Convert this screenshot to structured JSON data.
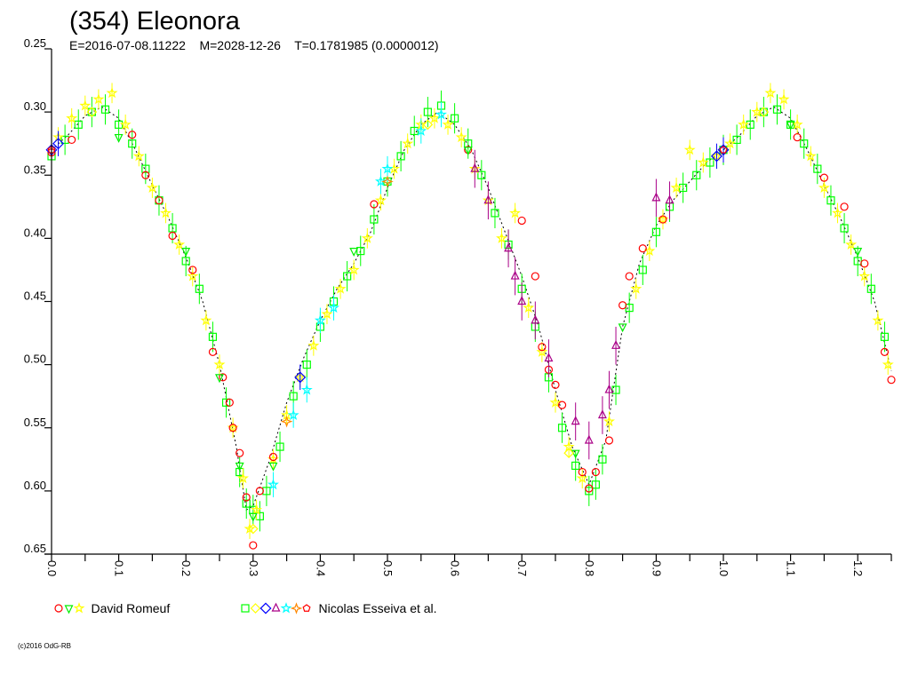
{
  "chart_data": {
    "type": "scatter",
    "title": "(354) Eleonora",
    "subtitle": "E=2016-07-08.11222    M=2028-12-26    T=0.1781985 (0.0000012)",
    "xlabel": "",
    "ylabel": "",
    "xlim": [
      0,
      1.25
    ],
    "ylim": [
      0.25,
      0.65
    ],
    "y_inverted": true,
    "grid": false,
    "x_ticks": [
      "0.0",
      "0.1",
      "0.2",
      "0.3",
      "0.4",
      "0.5",
      "0.6",
      "0.7",
      "0.8",
      "0.9",
      "1.0",
      "1.1",
      "1.2"
    ],
    "y_ticks": [
      "0.25",
      "0.30",
      "0.35",
      "0.40",
      "0.45",
      "0.50",
      "0.55",
      "0.60",
      "0.65"
    ],
    "legend_placement": "bottom",
    "legend": [
      {
        "label": "David Romeuf",
        "symbols": [
          [
            "circle",
            "#ff0000"
          ],
          [
            "triangle-down",
            "#00ee00"
          ],
          [
            "star",
            "#ffff00"
          ]
        ]
      },
      {
        "label": "Nicolas Esseiva et al.",
        "symbols": [
          [
            "square",
            "#00ff00"
          ],
          [
            "diamond",
            "#ffff00"
          ],
          [
            "xsquare",
            "#0000ff"
          ],
          [
            "triangle-up",
            "#aa0088"
          ],
          [
            "star",
            "#00ffff"
          ],
          [
            "diamond-star",
            "#ff8800"
          ],
          [
            "pentagon",
            "#ff0000"
          ]
        ]
      }
    ],
    "fit": {
      "x": [
        0,
        0.025,
        0.05,
        0.075,
        0.1,
        0.125,
        0.15,
        0.175,
        0.2,
        0.225,
        0.25,
        0.275,
        0.29,
        0.3,
        0.325,
        0.35,
        0.375,
        0.4,
        0.425,
        0.45,
        0.475,
        0.5,
        0.525,
        0.55,
        0.575,
        0.6,
        0.625,
        0.65,
        0.675,
        0.7,
        0.725,
        0.75,
        0.775,
        0.8,
        0.825,
        0.85,
        0.875,
        0.9,
        0.925,
        0.95,
        0.975,
        1.0,
        1.025,
        1.05,
        1.075,
        1.1,
        1.125,
        1.15,
        1.175,
        1.2,
        1.225,
        1.25
      ],
      "y": [
        0.33,
        0.318,
        0.303,
        0.296,
        0.305,
        0.33,
        0.358,
        0.385,
        0.415,
        0.45,
        0.5,
        0.565,
        0.615,
        0.612,
        0.575,
        0.53,
        0.495,
        0.465,
        0.44,
        0.42,
        0.395,
        0.36,
        0.33,
        0.31,
        0.3,
        0.31,
        0.33,
        0.36,
        0.395,
        0.43,
        0.47,
        0.52,
        0.565,
        0.595,
        0.56,
        0.47,
        0.42,
        0.39,
        0.37,
        0.355,
        0.34,
        0.33,
        0.318,
        0.303,
        0.296,
        0.305,
        0.33,
        0.358,
        0.385,
        0.415,
        0.45,
        0.505
      ]
    },
    "series": [
      {
        "name": "Nicolas Esseiva et al. (square)",
        "symbol": "square",
        "color": "#00ff00",
        "err": 0.012,
        "points": [
          [
            0,
            0.335
          ],
          [
            0.02,
            0.322
          ],
          [
            0.04,
            0.31
          ],
          [
            0.06,
            0.3
          ],
          [
            0.08,
            0.298
          ],
          [
            0.1,
            0.31
          ],
          [
            0.12,
            0.325
          ],
          [
            0.14,
            0.345
          ],
          [
            0.16,
            0.37
          ],
          [
            0.18,
            0.392
          ],
          [
            0.2,
            0.418
          ],
          [
            0.22,
            0.44
          ],
          [
            0.24,
            0.478
          ],
          [
            0.26,
            0.53
          ],
          [
            0.28,
            0.585
          ],
          [
            0.29,
            0.61
          ],
          [
            0.3,
            0.615
          ],
          [
            0.31,
            0.62
          ],
          [
            0.32,
            0.6
          ],
          [
            0.34,
            0.565
          ],
          [
            0.36,
            0.525
          ],
          [
            0.38,
            0.5
          ],
          [
            0.4,
            0.47
          ],
          [
            0.42,
            0.45
          ],
          [
            0.44,
            0.43
          ],
          [
            0.46,
            0.41
          ],
          [
            0.48,
            0.385
          ],
          [
            0.5,
            0.355
          ],
          [
            0.52,
            0.335
          ],
          [
            0.54,
            0.315
          ],
          [
            0.56,
            0.3
          ],
          [
            0.58,
            0.295
          ],
          [
            0.6,
            0.305
          ],
          [
            0.62,
            0.325
          ],
          [
            0.64,
            0.35
          ],
          [
            0.66,
            0.38
          ],
          [
            0.68,
            0.405
          ],
          [
            0.7,
            0.44
          ],
          [
            0.72,
            0.47
          ],
          [
            0.74,
            0.51
          ],
          [
            0.76,
            0.55
          ],
          [
            0.78,
            0.58
          ],
          [
            0.8,
            0.6
          ],
          [
            0.81,
            0.595
          ],
          [
            0.82,
            0.575
          ],
          [
            0.84,
            0.52
          ],
          [
            0.86,
            0.455
          ],
          [
            0.88,
            0.425
          ],
          [
            0.9,
            0.395
          ],
          [
            0.92,
            0.375
          ],
          [
            0.94,
            0.36
          ],
          [
            0.96,
            0.35
          ],
          [
            0.98,
            0.34
          ],
          [
            1.0,
            0.33
          ],
          [
            1.02,
            0.322
          ],
          [
            1.04,
            0.31
          ],
          [
            1.06,
            0.3
          ],
          [
            1.08,
            0.298
          ],
          [
            1.1,
            0.31
          ],
          [
            1.12,
            0.325
          ],
          [
            1.14,
            0.345
          ],
          [
            1.16,
            0.37
          ],
          [
            1.18,
            0.392
          ],
          [
            1.2,
            0.418
          ],
          [
            1.22,
            0.44
          ],
          [
            1.24,
            0.478
          ]
        ]
      },
      {
        "name": "David Romeuf (star)",
        "symbol": "star",
        "color": "#ffff00",
        "err": 0.008,
        "points": [
          [
            0.01,
            0.32
          ],
          [
            0.03,
            0.305
          ],
          [
            0.05,
            0.295
          ],
          [
            0.07,
            0.29
          ],
          [
            0.09,
            0.285
          ],
          [
            0.11,
            0.31
          ],
          [
            0.13,
            0.335
          ],
          [
            0.15,
            0.36
          ],
          [
            0.17,
            0.38
          ],
          [
            0.19,
            0.405
          ],
          [
            0.21,
            0.43
          ],
          [
            0.23,
            0.465
          ],
          [
            0.25,
            0.5
          ],
          [
            0.27,
            0.55
          ],
          [
            0.285,
            0.59
          ],
          [
            0.295,
            0.63
          ],
          [
            0.305,
            0.615
          ],
          [
            0.33,
            0.575
          ],
          [
            0.35,
            0.54
          ],
          [
            0.37,
            0.51
          ],
          [
            0.39,
            0.485
          ],
          [
            0.41,
            0.46
          ],
          [
            0.43,
            0.44
          ],
          [
            0.45,
            0.425
          ],
          [
            0.47,
            0.4
          ],
          [
            0.49,
            0.37
          ],
          [
            0.51,
            0.345
          ],
          [
            0.53,
            0.325
          ],
          [
            0.55,
            0.31
          ],
          [
            0.57,
            0.305
          ],
          [
            0.59,
            0.31
          ],
          [
            0.61,
            0.32
          ],
          [
            0.63,
            0.345
          ],
          [
            0.65,
            0.37
          ],
          [
            0.67,
            0.4
          ],
          [
            0.69,
            0.38
          ],
          [
            0.71,
            0.455
          ],
          [
            0.73,
            0.49
          ],
          [
            0.75,
            0.53
          ],
          [
            0.77,
            0.565
          ],
          [
            0.79,
            0.59
          ],
          [
            0.83,
            0.545
          ],
          [
            0.87,
            0.44
          ],
          [
            0.89,
            0.41
          ],
          [
            0.91,
            0.385
          ],
          [
            0.93,
            0.36
          ],
          [
            0.95,
            0.33
          ],
          [
            0.97,
            0.34
          ],
          [
            0.99,
            0.335
          ],
          [
            1.01,
            0.325
          ],
          [
            1.03,
            0.31
          ],
          [
            1.05,
            0.3
          ],
          [
            1.07,
            0.285
          ],
          [
            1.09,
            0.29
          ],
          [
            1.11,
            0.31
          ],
          [
            1.13,
            0.335
          ],
          [
            1.15,
            0.36
          ],
          [
            1.17,
            0.38
          ],
          [
            1.19,
            0.405
          ],
          [
            1.21,
            0.43
          ],
          [
            1.23,
            0.465
          ],
          [
            1.245,
            0.5
          ]
        ]
      },
      {
        "name": "David Romeuf (circle)",
        "symbol": "circle",
        "color": "#ff0000",
        "err": 0,
        "points": [
          [
            0,
            0.332
          ],
          [
            0.03,
            0.322
          ],
          [
            0.12,
            0.318
          ],
          [
            0.14,
            0.35
          ],
          [
            0.16,
            0.37
          ],
          [
            0.18,
            0.398
          ],
          [
            0.21,
            0.425
          ],
          [
            0.24,
            0.49
          ],
          [
            0.255,
            0.51
          ],
          [
            0.265,
            0.53
          ],
          [
            0.27,
            0.55
          ],
          [
            0.28,
            0.57
          ],
          [
            0.29,
            0.605
          ],
          [
            0.3,
            0.643
          ],
          [
            0.31,
            0.6
          ],
          [
            0.33,
            0.573
          ],
          [
            0.48,
            0.373
          ],
          [
            0.62,
            0.33
          ],
          [
            0.7,
            0.386
          ],
          [
            0.72,
            0.43
          ],
          [
            0.73,
            0.486
          ],
          [
            0.74,
            0.504
          ],
          [
            0.75,
            0.516
          ],
          [
            0.76,
            0.532
          ],
          [
            0.79,
            0.585
          ],
          [
            0.8,
            0.598
          ],
          [
            0.81,
            0.585
          ],
          [
            0.83,
            0.56
          ],
          [
            0.85,
            0.453
          ],
          [
            0.86,
            0.43
          ],
          [
            0.88,
            0.408
          ],
          [
            0.91,
            0.385
          ],
          [
            1.11,
            0.32
          ],
          [
            1.15,
            0.352
          ],
          [
            1.18,
            0.375
          ],
          [
            1.21,
            0.42
          ],
          [
            1.24,
            0.49
          ],
          [
            1.25,
            0.512
          ]
        ]
      },
      {
        "name": "David Romeuf (triangle-down)",
        "symbol": "triangle-down",
        "color": "#00ee00",
        "err": 0,
        "points": [
          [
            0.1,
            0.32
          ],
          [
            0.2,
            0.41
          ],
          [
            0.25,
            0.51
          ],
          [
            0.28,
            0.58
          ],
          [
            0.3,
            0.62
          ],
          [
            0.33,
            0.58
          ],
          [
            0.45,
            0.41
          ],
          [
            0.62,
            0.33
          ],
          [
            0.78,
            0.57
          ],
          [
            0.85,
            0.47
          ],
          [
            1.1,
            0.31
          ],
          [
            1.2,
            0.41
          ]
        ]
      },
      {
        "name": "Nicolas Esseiva et al. (triangle-up)",
        "symbol": "triangle-up",
        "color": "#aa0088",
        "err": 0.015,
        "points": [
          [
            0.63,
            0.345
          ],
          [
            0.65,
            0.37
          ],
          [
            0.68,
            0.408
          ],
          [
            0.69,
            0.43
          ],
          [
            0.7,
            0.45
          ],
          [
            0.72,
            0.465
          ],
          [
            0.74,
            0.495
          ],
          [
            0.78,
            0.545
          ],
          [
            0.8,
            0.56
          ],
          [
            0.82,
            0.54
          ],
          [
            0.83,
            0.52
          ],
          [
            0.84,
            0.485
          ],
          [
            0.9,
            0.368
          ],
          [
            0.92,
            0.37
          ]
        ]
      },
      {
        "name": "Nicolas Esseiva et al. (cyan star)",
        "symbol": "star",
        "color": "#00ffff",
        "err": 0.01,
        "points": [
          [
            0.33,
            0.595
          ],
          [
            0.36,
            0.54
          ],
          [
            0.38,
            0.52
          ],
          [
            0.4,
            0.465
          ],
          [
            0.42,
            0.455
          ],
          [
            0.49,
            0.355
          ],
          [
            0.5,
            0.345
          ],
          [
            0.55,
            0.315
          ],
          [
            0.58,
            0.302
          ]
        ]
      },
      {
        "name": "Nicolas Esseiva et al. (xsquare)",
        "symbol": "xsquare",
        "color": "#0000ff",
        "err": 0.01,
        "points": [
          [
            0,
            0.33
          ],
          [
            0.01,
            0.325
          ],
          [
            0.99,
            0.335
          ],
          [
            1.0,
            0.33
          ],
          [
            0.37,
            0.51
          ]
        ]
      },
      {
        "name": "Nicolas Esseiva et al. (diamond)",
        "symbol": "diamond",
        "color": "#ffff00",
        "err": 0,
        "points": [
          [
            0.06,
            0.3
          ],
          [
            0.3,
            0.63
          ],
          [
            0.56,
            0.31
          ],
          [
            0.77,
            0.57
          ],
          [
            1.06,
            0.3
          ]
        ]
      },
      {
        "name": "Nicolas Esseiva et al. (diamond-star)",
        "symbol": "diamond-star",
        "color": "#ff8800",
        "err": 0,
        "points": [
          [
            0.35,
            0.545
          ],
          [
            0.5,
            0.355
          ]
        ]
      },
      {
        "name": "Nicolas Esseiva et al. (pentagon)",
        "symbol": "pentagon",
        "color": "#ff0000",
        "err": 0,
        "points": [
          [
            0,
            0.33
          ],
          [
            1.0,
            0.33
          ]
        ]
      }
    ]
  },
  "footer": {
    "copyright": "(c)2016 OdG-RB"
  }
}
